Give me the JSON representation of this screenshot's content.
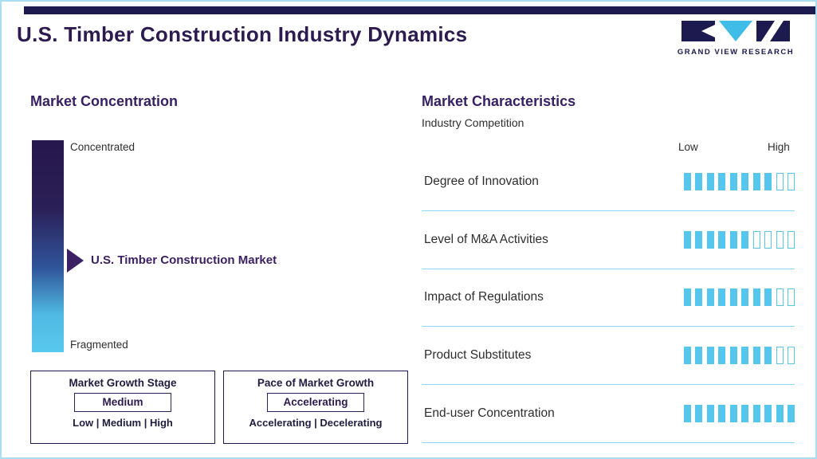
{
  "header": {
    "title": "U.S. Timber Construction Industry Dynamics",
    "logo_text": "GRAND VIEW RESEARCH"
  },
  "market_concentration": {
    "heading": "Market Concentration",
    "scale_top": "Concentrated",
    "scale_bottom": "Fragmented",
    "marker_label": "U.S. Timber Construction Market",
    "growth_stage_box": {
      "title": "Market Growth Stage",
      "selected": "Medium",
      "options": "Low | Medium | High"
    },
    "pace_box": {
      "title": "Pace of Market Growth",
      "selected": "Accelerating",
      "options": "Accelerating | Decelerating"
    }
  },
  "market_characteristics": {
    "heading": "Market Characteristics",
    "subtitle": "Industry Competition",
    "low_label": "Low",
    "high_label": "High",
    "rows": [
      {
        "label": "Degree of Innovation",
        "filled": 8,
        "total": 10
      },
      {
        "label": "Level of M&A Activities",
        "filled": 6,
        "total": 10
      },
      {
        "label": "Impact of Regulations",
        "filled": 8,
        "total": 10
      },
      {
        "label": "Product Substitutes",
        "filled": 8,
        "total": 10
      },
      {
        "label": "End-user Concentration",
        "filled": 10,
        "total": 10
      }
    ]
  },
  "colors": {
    "navy": "#1c1a4e",
    "title_purple": "#2d1b4f",
    "heading_purple": "#372064",
    "cyan": "#57c6ed",
    "divider_blue": "#8ad8f3",
    "border_blue": "#aadef3"
  },
  "chart_data": [
    {
      "type": "bar",
      "title": "Market Characteristics - Industry Competition",
      "categories": [
        "Degree of Innovation",
        "Level of M&A Activities",
        "Impact of Regulations",
        "Product Substitutes",
        "End-user Concentration"
      ],
      "values": [
        8,
        6,
        8,
        8,
        10
      ],
      "xlabel": "Rating scale: Low to High (10 segments)",
      "ylabel": "",
      "ylim": [
        0,
        10
      ],
      "legend": "none"
    },
    {
      "type": "table",
      "title": "Market Concentration",
      "columns": [
        "Attribute",
        "Value"
      ],
      "rows": [
        [
          "Concentration scale",
          "Concentrated (top) to Fragmented (bottom)"
        ],
        [
          "U.S. Timber Construction Market position",
          "Mid-scale"
        ],
        [
          "Market Growth Stage",
          "Medium (options: Low | Medium | High)"
        ],
        [
          "Pace of Market Growth",
          "Accelerating (options: Accelerating | Decelerating)"
        ]
      ]
    }
  ]
}
